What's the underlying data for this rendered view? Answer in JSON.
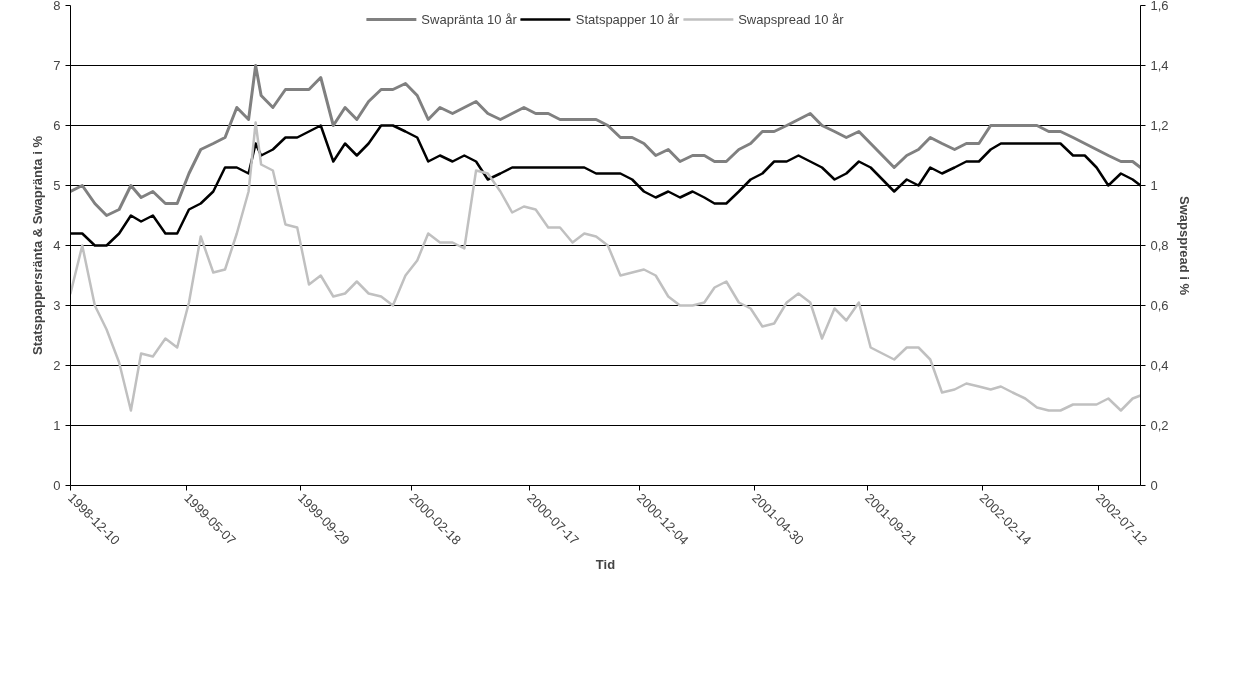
{
  "chart_data": {
    "type": "line",
    "x": [
      "1998-12-10",
      "1998-12-25",
      "1999-01-10",
      "1999-01-25",
      "1999-02-10",
      "1999-02-25",
      "1999-03-10",
      "1999-03-25",
      "1999-04-10",
      "1999-04-25",
      "1999-05-10",
      "1999-05-25",
      "1999-06-10",
      "1999-06-25",
      "1999-07-10",
      "1999-07-25",
      "1999-08-03",
      "1999-08-10",
      "1999-08-25",
      "1999-09-10",
      "1999-09-25",
      "1999-10-10",
      "1999-10-25",
      "1999-11-10",
      "1999-11-25",
      "1999-12-10",
      "1999-12-25",
      "2000-01-10",
      "2000-01-25",
      "2000-02-10",
      "2000-02-25",
      "2000-03-10",
      "2000-03-25",
      "2000-04-10",
      "2000-04-25",
      "2000-05-10",
      "2000-05-25",
      "2000-06-10",
      "2000-06-25",
      "2000-07-10",
      "2000-07-25",
      "2000-08-10",
      "2000-08-25",
      "2000-09-10",
      "2000-09-25",
      "2000-10-10",
      "2000-10-25",
      "2000-11-10",
      "2000-11-25",
      "2000-12-10",
      "2000-12-25",
      "2001-01-10",
      "2001-01-25",
      "2001-02-10",
      "2001-02-25",
      "2001-03-10",
      "2001-03-25",
      "2001-04-10",
      "2001-04-25",
      "2001-05-10",
      "2001-05-25",
      "2001-06-10",
      "2001-06-25",
      "2001-07-10",
      "2001-07-25",
      "2001-08-10",
      "2001-08-25",
      "2001-09-10",
      "2001-09-25",
      "2001-10-10",
      "2001-10-25",
      "2001-11-10",
      "2001-11-25",
      "2001-12-10",
      "2001-12-25",
      "2002-01-10",
      "2002-01-25",
      "2002-02-10",
      "2002-02-25",
      "2002-03-10",
      "2002-03-25",
      "2002-04-10",
      "2002-04-25",
      "2002-05-10",
      "2002-05-25",
      "2002-06-10",
      "2002-06-25",
      "2002-07-10",
      "2002-07-25",
      "2002-08-10",
      "2002-08-25",
      "2002-09-04"
    ],
    "series": [
      {
        "name": "Swapränta 10 år",
        "color": "#808080",
        "values": [
          4.9,
          5.0,
          4.7,
          4.5,
          4.6,
          5.0,
          4.8,
          4.9,
          4.7,
          4.7,
          5.2,
          5.6,
          5.7,
          5.8,
          6.3,
          6.1,
          7.0,
          6.5,
          6.3,
          6.6,
          6.6,
          6.6,
          6.8,
          6.0,
          6.3,
          6.1,
          6.4,
          6.6,
          6.6,
          6.7,
          6.5,
          6.1,
          6.3,
          6.2,
          6.3,
          6.4,
          6.2,
          6.1,
          6.2,
          6.3,
          6.2,
          6.2,
          6.1,
          6.1,
          6.1,
          6.1,
          6.0,
          5.8,
          5.8,
          5.7,
          5.5,
          5.6,
          5.4,
          5.5,
          5.5,
          5.4,
          5.4,
          5.6,
          5.7,
          5.9,
          5.9,
          6.0,
          6.1,
          6.2,
          6.0,
          5.9,
          5.8,
          5.9,
          5.7,
          5.5,
          5.3,
          5.5,
          5.6,
          5.8,
          5.7,
          5.6,
          5.7,
          5.7,
          6.0,
          6.0,
          6.0,
          6.0,
          6.0,
          5.9,
          5.9,
          5.8,
          5.7,
          5.6,
          5.5,
          5.4,
          5.4,
          5.3
        ]
      },
      {
        "name": "Statspapper 10 år",
        "color": "#000000",
        "values": [
          4.2,
          4.2,
          4.0,
          4.0,
          4.2,
          4.5,
          4.4,
          4.5,
          4.2,
          4.2,
          4.6,
          4.7,
          4.9,
          5.3,
          5.3,
          5.2,
          5.7,
          5.5,
          5.6,
          5.8,
          5.8,
          5.9,
          6.0,
          5.4,
          5.7,
          5.5,
          5.7,
          6.0,
          6.0,
          5.9,
          5.8,
          5.4,
          5.5,
          5.4,
          5.5,
          5.4,
          5.1,
          5.2,
          5.3,
          5.3,
          5.3,
          5.3,
          5.3,
          5.3,
          5.3,
          5.2,
          5.2,
          5.2,
          5.1,
          4.9,
          4.8,
          4.9,
          4.8,
          4.9,
          4.8,
          4.7,
          4.7,
          4.9,
          5.1,
          5.2,
          5.4,
          5.4,
          5.5,
          5.4,
          5.3,
          5.1,
          5.2,
          5.4,
          5.3,
          5.1,
          4.9,
          5.1,
          5.0,
          5.3,
          5.2,
          5.3,
          5.4,
          5.4,
          5.6,
          5.7,
          5.7,
          5.7,
          5.7,
          5.7,
          5.7,
          5.5,
          5.5,
          5.3,
          5.0,
          5.2,
          5.1,
          5.0
        ]
      },
      {
        "name": "Swapspread 10 år",
        "color": "#c0c0c0",
        "axis": "y2",
        "values": [
          0.64,
          0.8,
          0.6,
          0.52,
          0.41,
          0.25,
          0.44,
          0.43,
          0.49,
          0.46,
          0.61,
          0.83,
          0.71,
          0.72,
          0.84,
          0.98,
          1.21,
          1.07,
          1.05,
          0.87,
          0.86,
          0.67,
          0.7,
          0.63,
          0.64,
          0.68,
          0.64,
          0.63,
          0.6,
          0.7,
          0.75,
          0.84,
          0.81,
          0.81,
          0.79,
          1.05,
          1.04,
          0.98,
          0.91,
          0.93,
          0.92,
          0.86,
          0.86,
          0.81,
          0.84,
          0.83,
          0.8,
          0.7,
          0.71,
          0.72,
          0.7,
          0.63,
          0.6,
          0.6,
          0.61,
          0.66,
          0.68,
          0.61,
          0.59,
          0.53,
          0.54,
          0.61,
          0.64,
          0.61,
          0.49,
          0.59,
          0.55,
          0.61,
          0.46,
          0.44,
          0.42,
          0.46,
          0.46,
          0.42,
          0.31,
          0.32,
          0.34,
          0.33,
          0.32,
          0.33,
          0.31,
          0.29,
          0.26,
          0.25,
          0.25,
          0.27,
          0.27,
          0.27,
          0.29,
          0.25,
          0.29,
          0.3
        ]
      }
    ],
    "xlabel": "Tid",
    "ylabel": "Statspappersränta & Swapränta i %",
    "y2label": "Swapspread i %",
    "xlim": [
      "1998-12-10",
      "2002-09-04"
    ],
    "xticks": [
      "1998-12-10",
      "1999-05-07",
      "1999-09-29",
      "2000-02-18",
      "2000-07-17",
      "2000-12-04",
      "2001-04-30",
      "2001-09-21",
      "2002-02-14",
      "2002-07-12"
    ],
    "ylim": [
      0,
      8
    ],
    "yticks": [
      0,
      1,
      2,
      3,
      4,
      5,
      6,
      7,
      8
    ],
    "y2lim": [
      0,
      1.6
    ],
    "y2ticks": [
      0,
      {
        "value": 0.2,
        "label": "0,2"
      },
      {
        "value": 0.4,
        "label": "0,4"
      },
      {
        "value": 0.6,
        "label": "0,6"
      },
      {
        "value": 0.8,
        "label": "0,8"
      },
      1,
      {
        "value": 1.2,
        "label": "1,2"
      },
      {
        "value": 1.4,
        "label": "1,4"
      },
      {
        "value": 1.6,
        "label": "1,6"
      }
    ],
    "grid": "y",
    "legend": "top",
    "marker": "none",
    "line_style": "solid"
  }
}
